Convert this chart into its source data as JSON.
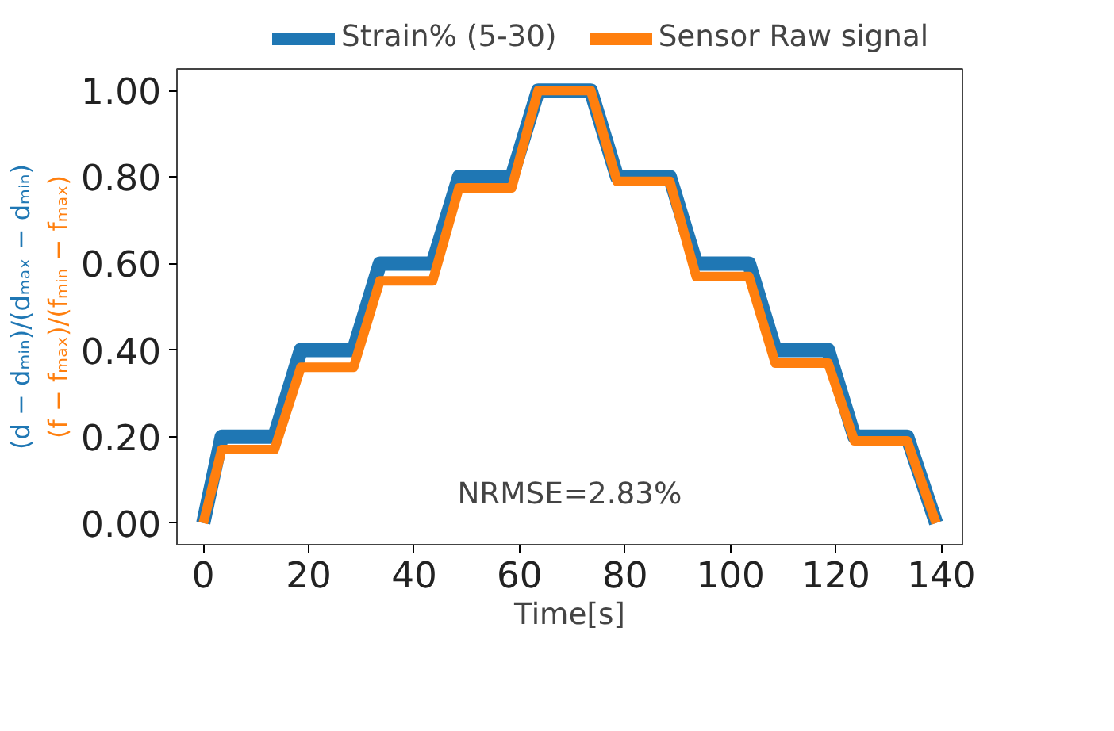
{
  "chart_data": {
    "type": "line",
    "xlabel": "Time[s]",
    "ylabel": [
      "(d − dₘᵢₙ)/(dₘₐₓ − dₘᵢₙ)",
      "(f − fₘₐₓ)/(fₘᵢₙ − fₘₐₓ)"
    ],
    "x": [
      0,
      3.5,
      13.5,
      18.5,
      28.5,
      33.5,
      43.5,
      48.5,
      58.5,
      63.5,
      73.5,
      78.5,
      88.5,
      93.5,
      103.5,
      108.5,
      118.5,
      123.5,
      133.5,
      139
    ],
    "series": [
      {
        "name": "Strain% (5-30)",
        "color": "#1f77b4",
        "values": [
          0,
          0.2,
          0.2,
          0.4,
          0.4,
          0.6,
          0.6,
          0.8,
          0.8,
          1.0,
          1.0,
          0.8,
          0.8,
          0.6,
          0.6,
          0.4,
          0.4,
          0.2,
          0.2,
          0
        ]
      },
      {
        "name": "Sensor Raw signal",
        "color": "#ff7f0e",
        "values": [
          0,
          0.17,
          0.17,
          0.36,
          0.36,
          0.56,
          0.56,
          0.775,
          0.775,
          1.0,
          1.0,
          0.79,
          0.79,
          0.57,
          0.57,
          0.37,
          0.37,
          0.19,
          0.19,
          0
        ]
      }
    ],
    "xlim": [
      -5,
      144
    ],
    "ylim": [
      -0.05,
      1.05
    ],
    "xticks": [
      0,
      20,
      40,
      60,
      80,
      100,
      120,
      140
    ],
    "yticks": [
      {
        "value": 0,
        "label": "0.00"
      },
      {
        "value": 0.2,
        "label": "0.20"
      },
      {
        "value": 0.4,
        "label": "0.40"
      },
      {
        "value": 0.6,
        "label": "0.60"
      },
      {
        "value": 0.8,
        "label": "0.80"
      },
      {
        "value": 1.0,
        "label": "1.00"
      }
    ],
    "annotations": [
      "NRMSE=2.83%"
    ],
    "legend": "top",
    "grid": false,
    "marker": "none",
    "line_style": "solid"
  }
}
